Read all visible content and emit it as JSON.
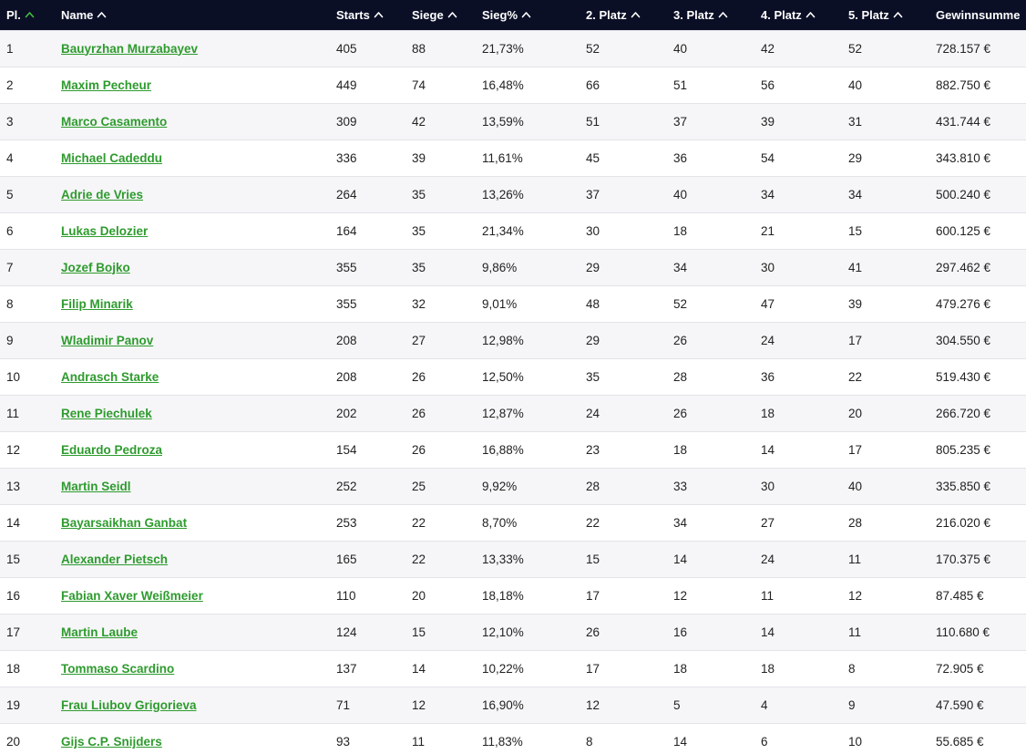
{
  "colors": {
    "header_bg": "#0b0f26",
    "header_text": "#ffffff",
    "link": "#2e9b2e",
    "active_arrow": "#3fbf3f"
  },
  "columns": [
    {
      "key": "pl",
      "label": "Pl.",
      "sort_icon": "chevron-up-icon",
      "active": true
    },
    {
      "key": "name",
      "label": "Name",
      "sort_icon": "chevron-up-icon",
      "active": false
    },
    {
      "key": "starts",
      "label": "Starts",
      "sort_icon": "chevron-up-icon",
      "active": false
    },
    {
      "key": "siege",
      "label": "Siege",
      "sort_icon": "chevron-up-icon",
      "active": false
    },
    {
      "key": "pct",
      "label": "Sieg%",
      "sort_icon": "chevron-up-icon",
      "active": false
    },
    {
      "key": "p2",
      "label": "2. Platz",
      "sort_icon": "chevron-up-icon",
      "active": false
    },
    {
      "key": "p3",
      "label": "3. Platz",
      "sort_icon": "chevron-up-icon",
      "active": false
    },
    {
      "key": "p4",
      "label": "4. Platz",
      "sort_icon": "chevron-up-icon",
      "active": false
    },
    {
      "key": "p5",
      "label": "5. Platz",
      "sort_icon": "chevron-up-icon",
      "active": false
    },
    {
      "key": "sum",
      "label": "Gewinnsumme",
      "sort_icon": null,
      "active": false
    }
  ],
  "rows": [
    {
      "pl": "1",
      "name": "Bauyrzhan Murzabayev",
      "starts": "405",
      "siege": "88",
      "pct": "21,73%",
      "p2": "52",
      "p3": "40",
      "p4": "42",
      "p5": "52",
      "sum": "728.157 €"
    },
    {
      "pl": "2",
      "name": "Maxim Pecheur",
      "starts": "449",
      "siege": "74",
      "pct": "16,48%",
      "p2": "66",
      "p3": "51",
      "p4": "56",
      "p5": "40",
      "sum": "882.750 €"
    },
    {
      "pl": "3",
      "name": "Marco Casamento",
      "starts": "309",
      "siege": "42",
      "pct": "13,59%",
      "p2": "51",
      "p3": "37",
      "p4": "39",
      "p5": "31",
      "sum": "431.744 €"
    },
    {
      "pl": "4",
      "name": "Michael Cadeddu",
      "starts": "336",
      "siege": "39",
      "pct": "11,61%",
      "p2": "45",
      "p3": "36",
      "p4": "54",
      "p5": "29",
      "sum": "343.810 €"
    },
    {
      "pl": "5",
      "name": "Adrie de Vries",
      "starts": "264",
      "siege": "35",
      "pct": "13,26%",
      "p2": "37",
      "p3": "40",
      "p4": "34",
      "p5": "34",
      "sum": "500.240 €"
    },
    {
      "pl": "6",
      "name": "Lukas Delozier",
      "starts": "164",
      "siege": "35",
      "pct": "21,34%",
      "p2": "30",
      "p3": "18",
      "p4": "21",
      "p5": "15",
      "sum": "600.125 €"
    },
    {
      "pl": "7",
      "name": "Jozef Bojko",
      "starts": "355",
      "siege": "35",
      "pct": "9,86%",
      "p2": "29",
      "p3": "34",
      "p4": "30",
      "p5": "41",
      "sum": "297.462 €"
    },
    {
      "pl": "8",
      "name": "Filip Minarik",
      "starts": "355",
      "siege": "32",
      "pct": "9,01%",
      "p2": "48",
      "p3": "52",
      "p4": "47",
      "p5": "39",
      "sum": "479.276 €"
    },
    {
      "pl": "9",
      "name": "Wladimir Panov",
      "starts": "208",
      "siege": "27",
      "pct": "12,98%",
      "p2": "29",
      "p3": "26",
      "p4": "24",
      "p5": "17",
      "sum": "304.550 €"
    },
    {
      "pl": "10",
      "name": "Andrasch Starke",
      "starts": "208",
      "siege": "26",
      "pct": "12,50%",
      "p2": "35",
      "p3": "28",
      "p4": "36",
      "p5": "22",
      "sum": "519.430 €"
    },
    {
      "pl": "11",
      "name": "Rene Piechulek",
      "starts": "202",
      "siege": "26",
      "pct": "12,87%",
      "p2": "24",
      "p3": "26",
      "p4": "18",
      "p5": "20",
      "sum": "266.720 €"
    },
    {
      "pl": "12",
      "name": "Eduardo Pedroza",
      "starts": "154",
      "siege": "26",
      "pct": "16,88%",
      "p2": "23",
      "p3": "18",
      "p4": "14",
      "p5": "17",
      "sum": "805.235 €"
    },
    {
      "pl": "13",
      "name": "Martin Seidl",
      "starts": "252",
      "siege": "25",
      "pct": "9,92%",
      "p2": "28",
      "p3": "33",
      "p4": "30",
      "p5": "40",
      "sum": "335.850 €"
    },
    {
      "pl": "14",
      "name": "Bayarsaikhan Ganbat",
      "starts": "253",
      "siege": "22",
      "pct": "8,70%",
      "p2": "22",
      "p3": "34",
      "p4": "27",
      "p5": "28",
      "sum": "216.020 €"
    },
    {
      "pl": "15",
      "name": "Alexander Pietsch",
      "starts": "165",
      "siege": "22",
      "pct": "13,33%",
      "p2": "15",
      "p3": "14",
      "p4": "24",
      "p5": "11",
      "sum": "170.375 €"
    },
    {
      "pl": "16",
      "name": "Fabian Xaver Weißmeier",
      "starts": "110",
      "siege": "20",
      "pct": "18,18%",
      "p2": "17",
      "p3": "12",
      "p4": "11",
      "p5": "12",
      "sum": "87.485 €"
    },
    {
      "pl": "17",
      "name": "Martin Laube",
      "starts": "124",
      "siege": "15",
      "pct": "12,10%",
      "p2": "26",
      "p3": "16",
      "p4": "14",
      "p5": "11",
      "sum": "110.680 €"
    },
    {
      "pl": "18",
      "name": "Tommaso Scardino",
      "starts": "137",
      "siege": "14",
      "pct": "10,22%",
      "p2": "17",
      "p3": "18",
      "p4": "18",
      "p5": "8",
      "sum": "72.905 €"
    },
    {
      "pl": "19",
      "name": "Frau Liubov Grigorieva",
      "starts": "71",
      "siege": "12",
      "pct": "16,90%",
      "p2": "12",
      "p3": "5",
      "p4": "4",
      "p5": "9",
      "sum": "47.590 €"
    },
    {
      "pl": "20",
      "name": "Gijs C.P. Snijders",
      "starts": "93",
      "siege": "11",
      "pct": "11,83%",
      "p2": "8",
      "p3": "14",
      "p4": "6",
      "p5": "10",
      "sum": "55.685 €"
    }
  ]
}
